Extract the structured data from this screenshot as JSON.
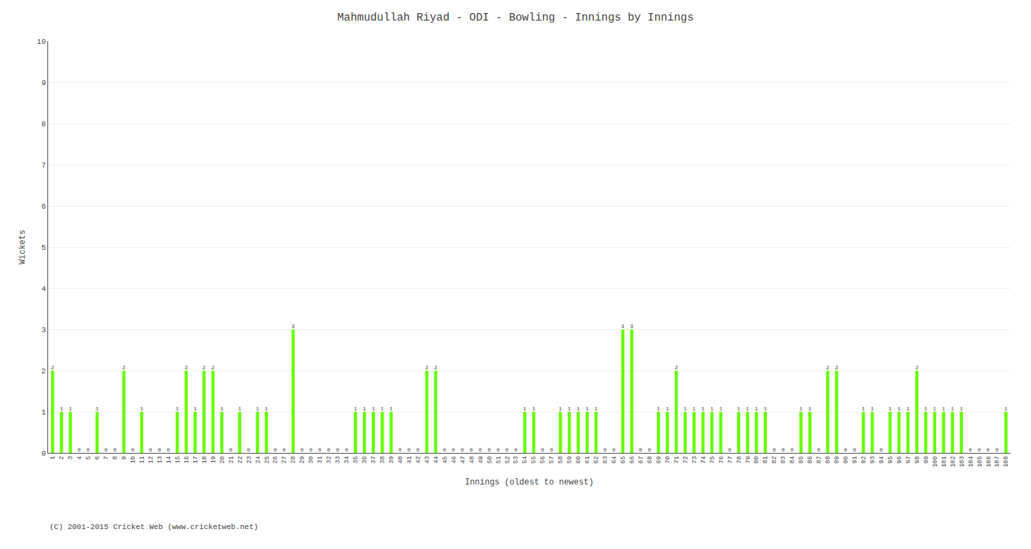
{
  "chart_data": {
    "type": "bar",
    "title": "Mahmudullah Riyad - ODI - Bowling - Innings by Innings",
    "xlabel": "Innings (oldest to newest)",
    "ylabel": "Wickets",
    "annotations": [
      "(C) 2001-2015 Cricket Web (www.cricketweb.net)"
    ],
    "categories": [
      "1",
      "2",
      "3",
      "4",
      "5",
      "6",
      "7",
      "8",
      "9",
      "10",
      "11",
      "12",
      "13",
      "14",
      "15",
      "16",
      "17",
      "18",
      "19",
      "20",
      "21",
      "22",
      "23",
      "24",
      "25",
      "26",
      "27",
      "28",
      "29",
      "30",
      "31",
      "32",
      "33",
      "34",
      "35",
      "36",
      "37",
      "38",
      "39",
      "40",
      "41",
      "42",
      "43",
      "44",
      "45",
      "46",
      "47",
      "48",
      "49",
      "50",
      "51",
      "52",
      "53",
      "54",
      "55",
      "56",
      "57",
      "58",
      "59",
      "60",
      "61",
      "62",
      "63",
      "64",
      "65",
      "66",
      "67",
      "68",
      "69",
      "70",
      "71",
      "72",
      "73",
      "74",
      "75",
      "76",
      "77",
      "78",
      "79",
      "80",
      "81",
      "82",
      "83",
      "84",
      "85",
      "86",
      "87",
      "88",
      "89",
      "90",
      "91",
      "92",
      "93",
      "94",
      "95",
      "96",
      "97",
      "98",
      "99",
      "100",
      "101",
      "102",
      "103",
      "104",
      "105",
      "106",
      "107",
      "108"
    ],
    "values": [
      2,
      1,
      1,
      0,
      0,
      1,
      0,
      0,
      2,
      0,
      1,
      0,
      0,
      0,
      1,
      2,
      1,
      2,
      2,
      1,
      0,
      1,
      0,
      1,
      1,
      0,
      0,
      3,
      0,
      0,
      0,
      0,
      0,
      0,
      1,
      1,
      1,
      1,
      1,
      0,
      0,
      0,
      2,
      2,
      0,
      0,
      0,
      0,
      0,
      0,
      0,
      0,
      0,
      1,
      1,
      0,
      0,
      1,
      1,
      1,
      1,
      1,
      0,
      0,
      3,
      3,
      0,
      0,
      1,
      1,
      2,
      1,
      1,
      1,
      1,
      1,
      0,
      1,
      1,
      1,
      1,
      0,
      0,
      0,
      1,
      1,
      0,
      2,
      2,
      0,
      0,
      1,
      1,
      0,
      1,
      1,
      1,
      2,
      1,
      1,
      1,
      1,
      1,
      0,
      0,
      0,
      0,
      1
    ],
    "color": "#66FF00",
    "ylim": [
      0,
      10
    ],
    "yticks": [
      0,
      1,
      2,
      3,
      4,
      5,
      6,
      7,
      8,
      9,
      10
    ],
    "grid": true,
    "data_labels": true
  }
}
